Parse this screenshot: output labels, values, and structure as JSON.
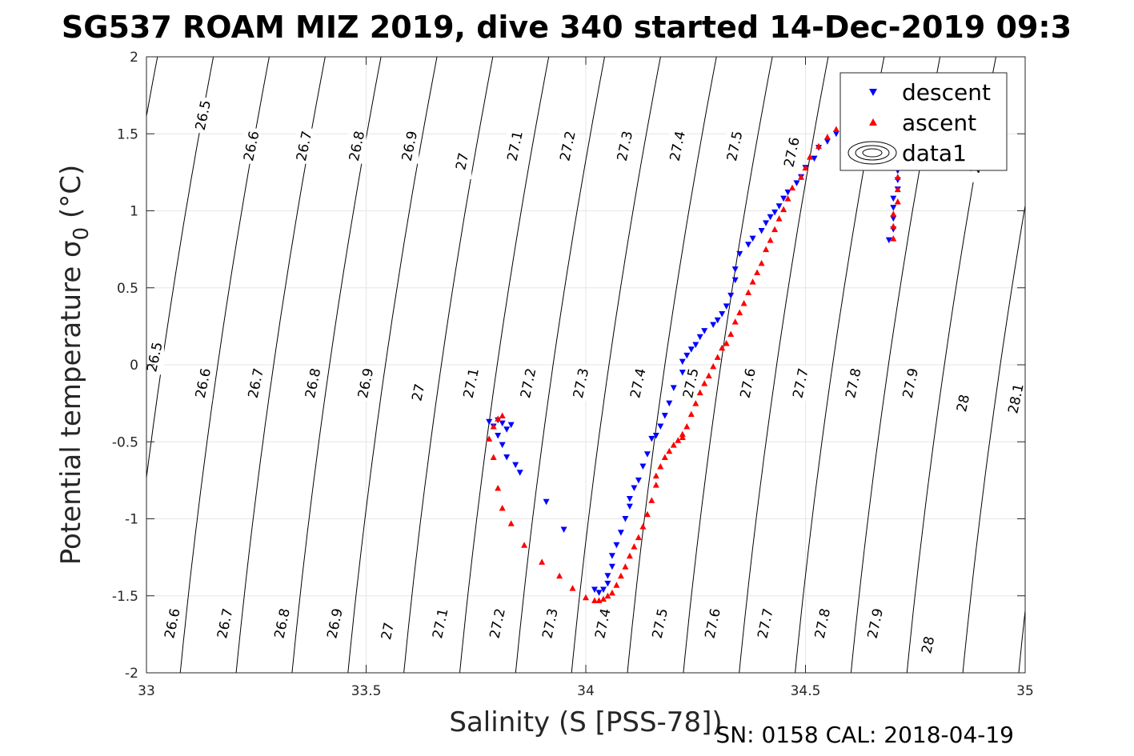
{
  "chart_data": {
    "type": "scatter",
    "title": "SG537 ROAM MIZ 2019, dive 340 started 14-Dec-2019 09:3",
    "xlabel": "Salinity (S [PSS-78])",
    "ylabel": "Potential temperature σ₀ (°C)",
    "ylabel_main": "Potential temperature ",
    "ylabel_sigma": "σ",
    "ylabel_sub": "0",
    "ylabel_unit": " (°C)",
    "xlim": [
      33,
      35
    ],
    "ylim": [
      -2,
      2
    ],
    "x_ticks": [
      "33",
      "33.5",
      "34",
      "34.5",
      "35"
    ],
    "y_ticks": [
      "-2",
      "-1.5",
      "-1",
      "-0.5",
      "0",
      "0.5",
      "1",
      "1.5",
      "2"
    ],
    "grid": true,
    "legend_position": "top-right",
    "legend": [
      "descent",
      "ascent",
      "data1"
    ],
    "colors": {
      "descent": "#0000ff",
      "ascent": "#ff0000",
      "contour": "#000000"
    },
    "density_contours": [
      "26.5",
      "26.6",
      "26.7",
      "26.8",
      "26.9",
      "27",
      "27.1",
      "27.2",
      "27.3",
      "27.4",
      "27.5",
      "27.6",
      "27.7",
      "27.8",
      "27.9",
      "28",
      "28.1"
    ],
    "contour_labels": [
      {
        "text": "26.5",
        "s": 33.13,
        "t": 1.62
      },
      {
        "text": "26.6",
        "s": 33.24,
        "t": 1.42
      },
      {
        "text": "26.7",
        "s": 33.36,
        "t": 1.42
      },
      {
        "text": "26.8",
        "s": 33.48,
        "t": 1.42
      },
      {
        "text": "26.9",
        "s": 33.6,
        "t": 1.42
      },
      {
        "text": "27",
        "s": 33.72,
        "t": 1.32
      },
      {
        "text": "27.1",
        "s": 33.84,
        "t": 1.42
      },
      {
        "text": "27.2",
        "s": 33.96,
        "t": 1.42
      },
      {
        "text": "27.3",
        "s": 34.09,
        "t": 1.42
      },
      {
        "text": "27.4",
        "s": 34.21,
        "t": 1.42
      },
      {
        "text": "27.5",
        "s": 34.34,
        "t": 1.42
      },
      {
        "text": "27.6",
        "s": 34.47,
        "t": 1.38
      },
      {
        "text": "28",
        "s": 34.89,
        "t": 1.3
      },
      {
        "text": "26.5",
        "s": 33.02,
        "t": 0.05
      },
      {
        "text": "26.6",
        "s": 33.13,
        "t": -0.12
      },
      {
        "text": "26.7",
        "s": 33.25,
        "t": -0.12
      },
      {
        "text": "26.8",
        "s": 33.38,
        "t": -0.12
      },
      {
        "text": "26.9",
        "s": 33.5,
        "t": -0.12
      },
      {
        "text": "27",
        "s": 33.62,
        "t": -0.18
      },
      {
        "text": "27.1",
        "s": 33.74,
        "t": -0.12
      },
      {
        "text": "27.2",
        "s": 33.87,
        "t": -0.12
      },
      {
        "text": "27.3",
        "s": 33.99,
        "t": -0.12
      },
      {
        "text": "27.4",
        "s": 34.12,
        "t": -0.12
      },
      {
        "text": "27.5",
        "s": 34.24,
        "t": -0.12
      },
      {
        "text": "27.6",
        "s": 34.37,
        "t": -0.12
      },
      {
        "text": "27.7",
        "s": 34.49,
        "t": -0.12
      },
      {
        "text": "27.8",
        "s": 34.61,
        "t": -0.12
      },
      {
        "text": "27.9",
        "s": 34.74,
        "t": -0.12
      },
      {
        "text": "28",
        "s": 34.86,
        "t": -0.25
      },
      {
        "text": "28.1",
        "s": 34.98,
        "t": -0.22
      },
      {
        "text": "26.6",
        "s": 33.06,
        "t": -1.68
      },
      {
        "text": "26.7",
        "s": 33.18,
        "t": -1.68
      },
      {
        "text": "26.8",
        "s": 33.31,
        "t": -1.68
      },
      {
        "text": "26.9",
        "s": 33.43,
        "t": -1.68
      },
      {
        "text": "27",
        "s": 33.55,
        "t": -1.73
      },
      {
        "text": "27.1",
        "s": 33.67,
        "t": -1.68
      },
      {
        "text": "27.2",
        "s": 33.8,
        "t": -1.68
      },
      {
        "text": "27.3",
        "s": 33.92,
        "t": -1.68
      },
      {
        "text": "27.4",
        "s": 34.04,
        "t": -1.68
      },
      {
        "text": "27.5",
        "s": 34.17,
        "t": -1.68
      },
      {
        "text": "27.6",
        "s": 34.29,
        "t": -1.68
      },
      {
        "text": "27.7",
        "s": 34.41,
        "t": -1.68
      },
      {
        "text": "27.8",
        "s": 34.54,
        "t": -1.68
      },
      {
        "text": "27.9",
        "s": 34.66,
        "t": -1.68
      },
      {
        "text": "28",
        "s": 34.78,
        "t": -1.82
      }
    ],
    "series": [
      {
        "name": "descent",
        "marker": "down-triangle",
        "x": [
          34.69,
          34.7,
          34.7,
          34.7,
          34.7,
          34.71,
          34.71,
          34.71,
          34.72,
          34.72,
          34.72,
          34.72,
          34.73,
          34.73,
          34.72,
          34.71,
          34.63,
          34.61,
          34.59,
          34.57,
          34.55,
          34.53,
          34.52,
          34.5,
          34.49,
          34.48,
          34.46,
          34.45,
          34.44,
          34.43,
          34.42,
          34.41,
          34.4,
          34.38,
          34.37,
          34.35,
          34.34,
          34.34,
          34.33,
          34.32,
          34.31,
          34.3,
          34.29,
          34.27,
          34.26,
          34.25,
          34.24,
          34.23,
          34.22,
          34.22,
          34.2,
          34.19,
          34.18,
          34.17,
          34.16,
          34.15,
          34.14,
          34.13,
          34.12,
          34.11,
          34.1,
          34.1,
          34.09,
          34.08,
          34.07,
          34.06,
          34.06,
          34.05,
          34.05,
          34.04,
          34.03,
          34.02,
          33.95,
          33.91,
          33.85,
          33.84,
          33.82,
          33.81,
          33.8,
          33.79,
          33.78,
          33.8,
          33.81,
          33.82,
          33.83
        ],
        "y": [
          0.81,
          0.88,
          0.95,
          1.02,
          1.08,
          1.14,
          1.2,
          1.26,
          1.32,
          1.38,
          1.44,
          1.5,
          1.55,
          1.6,
          1.63,
          1.64,
          1.62,
          1.57,
          1.53,
          1.5,
          1.45,
          1.41,
          1.34,
          1.28,
          1.22,
          1.18,
          1.12,
          1.08,
          1.03,
          0.99,
          0.96,
          0.92,
          0.87,
          0.82,
          0.78,
          0.72,
          0.62,
          0.55,
          0.45,
          0.38,
          0.33,
          0.29,
          0.26,
          0.22,
          0.18,
          0.13,
          0.1,
          0.06,
          0.02,
          -0.05,
          -0.15,
          -0.25,
          -0.33,
          -0.4,
          -0.46,
          -0.48,
          -0.58,
          -0.66,
          -0.75,
          -0.8,
          -0.87,
          -0.92,
          -1.0,
          -1.09,
          -1.17,
          -1.24,
          -1.31,
          -1.37,
          -1.42,
          -1.46,
          -1.48,
          -1.46,
          -1.07,
          -0.89,
          -0.7,
          -0.65,
          -0.6,
          -0.52,
          -0.46,
          -0.4,
          -0.37,
          -0.36,
          -0.38,
          -0.42,
          -0.39
        ]
      },
      {
        "name": "ascent",
        "marker": "up-triangle",
        "x": [
          34.7,
          34.7,
          34.7,
          34.71,
          34.71,
          34.71,
          34.72,
          34.72,
          34.72,
          34.7,
          34.71,
          34.59,
          34.57,
          34.55,
          34.53,
          34.51,
          34.5,
          34.49,
          34.47,
          34.46,
          34.45,
          34.44,
          34.43,
          34.42,
          34.41,
          34.4,
          34.39,
          34.38,
          34.37,
          34.36,
          34.35,
          34.34,
          34.33,
          34.32,
          34.31,
          34.3,
          34.29,
          34.28,
          34.27,
          34.26,
          34.25,
          34.24,
          34.23,
          34.22,
          34.22,
          34.21,
          34.2,
          34.19,
          34.18,
          34.17,
          34.16,
          34.16,
          34.15,
          34.14,
          34.13,
          34.12,
          34.11,
          34.1,
          34.09,
          34.08,
          34.07,
          34.06,
          34.05,
          34.04,
          34.03,
          34.02,
          34.0,
          33.97,
          33.94,
          33.9,
          33.86,
          33.83,
          33.81,
          33.8,
          33.79,
          33.78,
          33.79,
          33.8,
          33.81
        ],
        "y": [
          0.82,
          0.9,
          0.98,
          1.06,
          1.14,
          1.22,
          1.3,
          1.38,
          1.45,
          1.55,
          1.62,
          1.58,
          1.53,
          1.48,
          1.42,
          1.35,
          1.28,
          1.22,
          1.15,
          1.08,
          1.01,
          0.95,
          0.88,
          0.81,
          0.75,
          0.66,
          0.6,
          0.54,
          0.47,
          0.4,
          0.34,
          0.28,
          0.2,
          0.14,
          0.11,
          0.05,
          -0.01,
          -0.07,
          -0.12,
          -0.18,
          -0.25,
          -0.32,
          -0.4,
          -0.45,
          -0.47,
          -0.49,
          -0.52,
          -0.56,
          -0.6,
          -0.66,
          -0.72,
          -0.78,
          -0.88,
          -0.97,
          -1.05,
          -1.12,
          -1.18,
          -1.24,
          -1.31,
          -1.37,
          -1.43,
          -1.48,
          -1.5,
          -1.52,
          -1.53,
          -1.53,
          -1.51,
          -1.45,
          -1.37,
          -1.28,
          -1.17,
          -1.03,
          -0.93,
          -0.8,
          -0.6,
          -0.48,
          -0.4,
          -0.35,
          -0.33
        ]
      }
    ]
  },
  "footer": {
    "serial": "SN: 0158  CAL: 2018-04-19"
  }
}
